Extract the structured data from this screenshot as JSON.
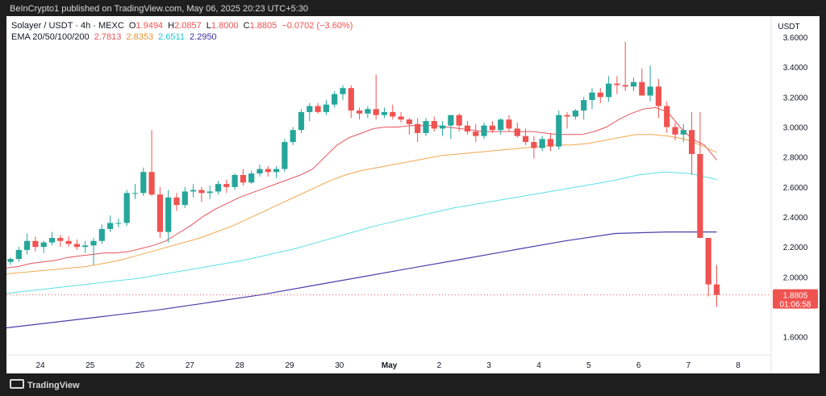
{
  "caption": "BeInCrypto1 published on TradingView.com, May 06, 2025 20:23 UTC+5:30",
  "header": {
    "symbol": "Solayer / USDT · 4h · MEXC",
    "o_label": "O",
    "o_value": "1.9494",
    "h_label": "H",
    "h_value": "2.0857",
    "l_label": "L",
    "l_value": "1.8000",
    "c_label": "C",
    "c_value": "1.8805",
    "change": "−0.0702 (−3.60%)",
    "ema_label": "EMA 20/50/100/200",
    "ema20": "2.7813",
    "ema50": "2.8353",
    "ema100": "2.6511",
    "ema200": "2.2950"
  },
  "price_scale_title": "USDT",
  "price_badge": {
    "price": "1.8805",
    "countdown": "01:06:58"
  },
  "logo_text": "TradingView",
  "colors": {
    "up": "#26a69a",
    "down": "#ef5350",
    "ema20": "#e5545c",
    "ema50": "#f0a84e",
    "ema100": "#5ce0e6",
    "ema200": "#4a3fa8"
  },
  "chart_data": {
    "type": "candlestick",
    "xlabel": "",
    "ylabel": "",
    "ylim": [
      1.48,
      3.74
    ],
    "y_ticks": [
      "3.6000",
      "3.4000",
      "3.2000",
      "3.0000",
      "2.8000",
      "2.6000",
      "2.4000",
      "2.2000",
      "2.0000",
      "1.6000"
    ],
    "x_ticks": [
      "24",
      "25",
      "26",
      "27",
      "28",
      "29",
      "30",
      "May",
      "2",
      "3",
      "4",
      "5",
      "6",
      "7",
      "8"
    ],
    "candles": [
      [
        2.1,
        2.13,
        2.08,
        2.12
      ],
      [
        2.12,
        2.2,
        2.1,
        2.18
      ],
      [
        2.18,
        2.29,
        2.15,
        2.24
      ],
      [
        2.24,
        2.27,
        2.17,
        2.2
      ],
      [
        2.2,
        2.24,
        2.16,
        2.23
      ],
      [
        2.23,
        2.3,
        2.21,
        2.26
      ],
      [
        2.26,
        2.28,
        2.2,
        2.24
      ],
      [
        2.24,
        2.27,
        2.2,
        2.22
      ],
      [
        2.22,
        2.25,
        2.18,
        2.2
      ],
      [
        2.2,
        2.24,
        2.16,
        2.21
      ],
      [
        2.21,
        2.26,
        2.08,
        2.24
      ],
      [
        2.24,
        2.35,
        2.22,
        2.32
      ],
      [
        2.32,
        2.41,
        2.3,
        2.36
      ],
      [
        2.36,
        2.39,
        2.33,
        2.36
      ],
      [
        2.36,
        2.58,
        2.34,
        2.56
      ],
      [
        2.56,
        2.62,
        2.52,
        2.56
      ],
      [
        2.56,
        2.73,
        2.54,
        2.7
      ],
      [
        2.7,
        2.98,
        2.54,
        2.55
      ],
      [
        2.55,
        2.6,
        2.26,
        2.3
      ],
      [
        2.3,
        2.58,
        2.23,
        2.53
      ],
      [
        2.53,
        2.56,
        2.44,
        2.48
      ],
      [
        2.48,
        2.6,
        2.46,
        2.57
      ],
      [
        2.57,
        2.62,
        2.53,
        2.58
      ],
      [
        2.58,
        2.6,
        2.5,
        2.56
      ],
      [
        2.56,
        2.61,
        2.52,
        2.57
      ],
      [
        2.57,
        2.64,
        2.55,
        2.62
      ],
      [
        2.62,
        2.65,
        2.56,
        2.6
      ],
      [
        2.6,
        2.69,
        2.58,
        2.68
      ],
      [
        2.68,
        2.72,
        2.61,
        2.63
      ],
      [
        2.63,
        2.71,
        2.62,
        2.69
      ],
      [
        2.69,
        2.75,
        2.67,
        2.72
      ],
      [
        2.72,
        2.74,
        2.67,
        2.7
      ],
      [
        2.7,
        2.74,
        2.66,
        2.72
      ],
      [
        2.72,
        2.92,
        2.7,
        2.9
      ],
      [
        2.9,
        3.0,
        2.88,
        2.98
      ],
      [
        2.98,
        3.12,
        2.96,
        3.1
      ],
      [
        3.1,
        3.16,
        3.04,
        3.14
      ],
      [
        3.14,
        3.16,
        3.09,
        3.1
      ],
      [
        3.1,
        3.18,
        3.08,
        3.15
      ],
      [
        3.15,
        3.24,
        3.13,
        3.22
      ],
      [
        3.22,
        3.28,
        3.18,
        3.26
      ],
      [
        3.26,
        3.28,
        3.06,
        3.11
      ],
      [
        3.11,
        3.13,
        3.05,
        3.09
      ],
      [
        3.09,
        3.14,
        3.06,
        3.12
      ],
      [
        3.12,
        3.35,
        3.05,
        3.08
      ],
      [
        3.08,
        3.13,
        3.06,
        3.1
      ],
      [
        3.1,
        3.15,
        3.05,
        3.07
      ],
      [
        3.07,
        3.1,
        3.03,
        3.05
      ],
      [
        3.05,
        3.06,
        2.95,
        3.02
      ],
      [
        3.02,
        3.06,
        2.9,
        2.96
      ],
      [
        2.96,
        3.06,
        2.94,
        3.04
      ],
      [
        3.04,
        3.07,
        2.97,
        2.99
      ],
      [
        2.99,
        3.04,
        2.94,
        3.01
      ],
      [
        3.01,
        3.08,
        2.92,
        3.08
      ],
      [
        3.08,
        3.09,
        2.97,
        3.01
      ],
      [
        3.01,
        3.04,
        2.95,
        2.97
      ],
      [
        2.97,
        3.02,
        2.9,
        2.94
      ],
      [
        2.94,
        3.03,
        2.92,
        3.01
      ],
      [
        3.01,
        3.04,
        2.96,
        2.98
      ],
      [
        2.98,
        3.06,
        2.95,
        3.05
      ],
      [
        3.05,
        3.08,
        2.97,
        2.99
      ],
      [
        2.99,
        3.03,
        2.93,
        2.94
      ],
      [
        2.94,
        2.99,
        2.88,
        2.9
      ],
      [
        2.9,
        2.94,
        2.79,
        2.86
      ],
      [
        2.86,
        2.94,
        2.84,
        2.92
      ],
      [
        2.92,
        2.96,
        2.84,
        2.87
      ],
      [
        2.87,
        3.11,
        2.85,
        3.08
      ],
      [
        3.08,
        3.1,
        2.99,
        3.07
      ],
      [
        3.07,
        3.12,
        3.05,
        3.11
      ],
      [
        3.11,
        3.2,
        3.05,
        3.18
      ],
      [
        3.18,
        3.26,
        3.12,
        3.23
      ],
      [
        3.23,
        3.26,
        3.16,
        3.2
      ],
      [
        3.2,
        3.34,
        3.17,
        3.29
      ],
      [
        3.29,
        3.34,
        3.22,
        3.28
      ],
      [
        3.28,
        3.57,
        3.24,
        3.27
      ],
      [
        3.27,
        3.33,
        3.24,
        3.3
      ],
      [
        3.3,
        3.39,
        3.21,
        3.21
      ],
      [
        3.21,
        3.41,
        3.17,
        3.27
      ],
      [
        3.27,
        3.32,
        3.06,
        3.14
      ],
      [
        3.14,
        3.17,
        2.96,
        3.0
      ],
      [
        3.0,
        3.03,
        2.91,
        2.95
      ],
      [
        2.95,
        3.02,
        2.9,
        2.98
      ],
      [
        2.98,
        3.1,
        2.68,
        2.82
      ],
      [
        2.82,
        3.1,
        2.26,
        2.26
      ],
      [
        2.26,
        2.26,
        1.87,
        1.95
      ],
      [
        1.95,
        2.08,
        1.8,
        1.88
      ]
    ],
    "series": [
      {
        "name": "EMA 20",
        "values": [
          2.06,
          2.07,
          2.09,
          2.1,
          2.11,
          2.13,
          2.14,
          2.15,
          2.16,
          2.16,
          2.17,
          2.19,
          2.21,
          2.24,
          2.29,
          2.34,
          2.4,
          2.45,
          2.49,
          2.53,
          2.56,
          2.59,
          2.62,
          2.65,
          2.68,
          2.72,
          2.8,
          2.88,
          2.93,
          2.96,
          2.99,
          3.0,
          3.0,
          3.01,
          3.01,
          3.01,
          3.0,
          2.99,
          2.98,
          2.97,
          2.97,
          2.97,
          2.97,
          2.97,
          2.96,
          2.95,
          2.95,
          2.95,
          2.97,
          3.0,
          3.05,
          3.09,
          3.12,
          3.13,
          3.1,
          3.0,
          2.92,
          2.88,
          2.78
        ]
      },
      {
        "name": "EMA 50",
        "values": [
          2.02,
          2.03,
          2.04,
          2.05,
          2.06,
          2.07,
          2.09,
          2.11,
          2.14,
          2.17,
          2.2,
          2.23,
          2.26,
          2.3,
          2.34,
          2.39,
          2.44,
          2.49,
          2.54,
          2.59,
          2.64,
          2.68,
          2.71,
          2.73,
          2.75,
          2.77,
          2.79,
          2.81,
          2.82,
          2.83,
          2.84,
          2.85,
          2.86,
          2.87,
          2.88,
          2.88,
          2.89,
          2.91,
          2.93,
          2.95,
          2.95,
          2.94,
          2.92,
          2.88,
          2.83
        ]
      },
      {
        "name": "EMA 100",
        "values": [
          1.89,
          1.91,
          1.93,
          1.95,
          1.97,
          1.99,
          2.02,
          2.05,
          2.08,
          2.11,
          2.15,
          2.19,
          2.24,
          2.29,
          2.34,
          2.38,
          2.42,
          2.46,
          2.49,
          2.52,
          2.55,
          2.58,
          2.61,
          2.64,
          2.68,
          2.7,
          2.69,
          2.65
        ]
      },
      {
        "name": "EMA 200",
        "values": [
          1.66,
          1.7,
          1.74,
          1.78,
          1.83,
          1.88,
          1.94,
          2.0,
          2.06,
          2.12,
          2.18,
          2.24,
          2.29,
          2.3,
          2.3
        ]
      }
    ]
  }
}
